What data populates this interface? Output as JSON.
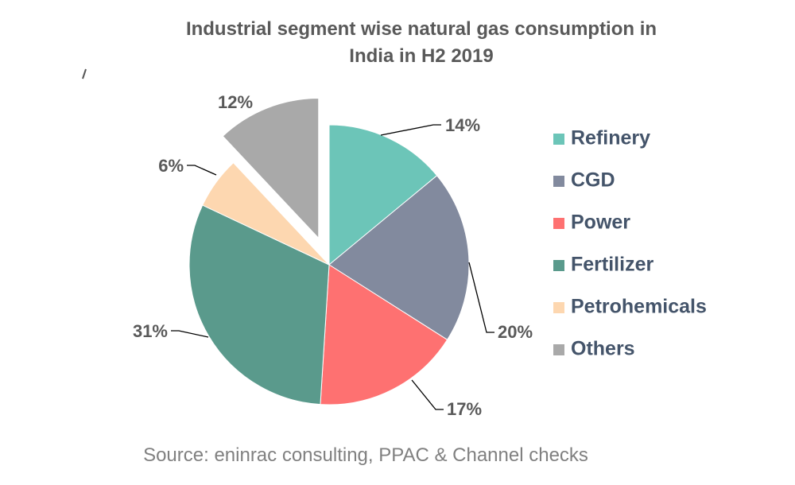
{
  "chart_data": {
    "type": "pie",
    "title_lines": [
      "Industrial segment wise natural gas consumption in",
      "India in H2 2019"
    ],
    "categories": [
      "Refinery",
      "CGD",
      "Power",
      "Fertilizer",
      "Petrohemicals",
      "Others"
    ],
    "values": [
      14,
      20,
      17,
      31,
      6,
      12
    ],
    "data_labels": [
      "14%",
      "20%",
      "17%",
      "31%",
      "6%",
      "12%"
    ],
    "colors": [
      "#6CC5B8",
      "#828A9E",
      "#FE7171",
      "#5A9A8C",
      "#FDD7B0",
      "#A9A9A9"
    ],
    "exploded": [
      "Others"
    ],
    "legend_position": "right",
    "source": "Source: eninrac consulting, PPAC & Channel checks"
  }
}
